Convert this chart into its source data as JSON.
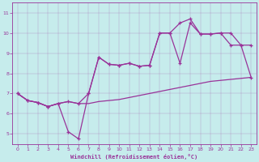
{
  "xlabel": "Windchill (Refroidissement éolien,°C)",
  "xlim": [
    -0.5,
    23.5
  ],
  "ylim": [
    4.5,
    11.5
  ],
  "yticks": [
    5,
    6,
    7,
    8,
    9,
    10,
    11
  ],
  "xticks": [
    0,
    1,
    2,
    3,
    4,
    5,
    6,
    7,
    8,
    9,
    10,
    11,
    12,
    13,
    14,
    15,
    16,
    17,
    18,
    19,
    20,
    21,
    22,
    23
  ],
  "background_color": "#c6ecec",
  "line_color": "#993399",
  "line1_x": [
    0,
    1,
    2,
    3,
    4,
    5,
    6,
    7,
    8,
    9,
    10,
    11,
    12,
    13,
    14,
    15,
    16,
    17,
    18,
    19,
    20,
    21,
    22,
    23
  ],
  "line1_y": [
    7.0,
    6.65,
    6.55,
    6.35,
    6.5,
    6.6,
    6.5,
    6.5,
    6.6,
    6.65,
    6.7,
    6.8,
    6.9,
    7.0,
    7.1,
    7.2,
    7.3,
    7.4,
    7.5,
    7.6,
    7.65,
    7.7,
    7.75,
    7.8
  ],
  "line2_x": [
    0,
    1,
    2,
    3,
    4,
    5,
    6,
    7,
    8,
    9,
    10,
    11,
    12,
    13,
    14,
    15,
    16,
    17,
    18,
    19,
    20,
    21,
    22,
    23
  ],
  "line2_y": [
    7.0,
    6.65,
    6.55,
    6.35,
    6.5,
    5.1,
    4.75,
    7.0,
    8.8,
    8.45,
    8.4,
    8.5,
    8.35,
    8.4,
    10.0,
    10.0,
    8.5,
    10.5,
    9.95,
    9.95,
    10.0,
    9.4,
    9.4,
    7.8
  ],
  "line3_x": [
    0,
    1,
    2,
    3,
    4,
    5,
    6,
    7,
    8,
    9,
    10,
    11,
    12,
    13,
    14,
    15,
    16,
    17,
    18,
    19,
    20,
    21,
    22,
    23
  ],
  "line3_y": [
    7.0,
    6.65,
    6.55,
    6.35,
    6.5,
    6.6,
    6.5,
    7.0,
    8.8,
    8.45,
    8.4,
    8.5,
    8.35,
    8.4,
    10.0,
    10.0,
    10.5,
    10.7,
    9.95,
    9.95,
    10.0,
    10.0,
    9.4,
    9.4
  ]
}
